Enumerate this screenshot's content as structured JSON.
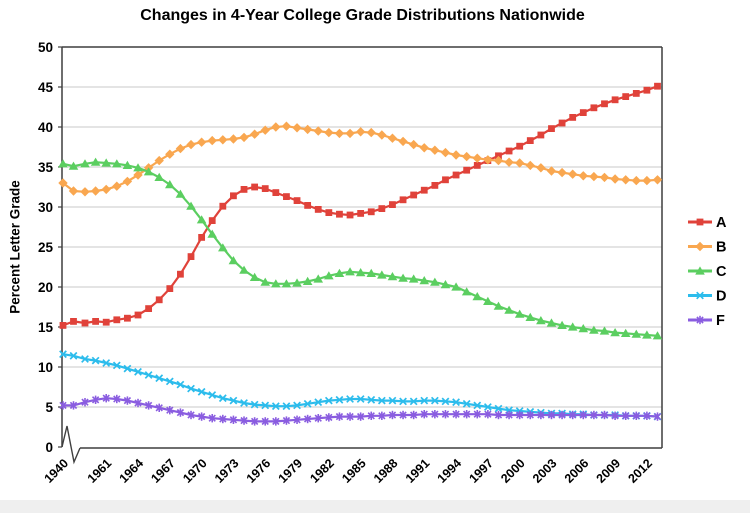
{
  "chart_data": {
    "type": "line",
    "title": "Changes in 4-Year College Grade Distributions Nationwide",
    "ylabel": "Percent Letter Grade",
    "xlabel": "",
    "ylim": [
      0,
      50
    ],
    "yticks": [
      0,
      5,
      10,
      15,
      20,
      25,
      30,
      35,
      40,
      45,
      50
    ],
    "xtick_labels": [
      "1940",
      "1961",
      "1964",
      "1967",
      "1970",
      "1973",
      "1976",
      "1979",
      "1982",
      "1985",
      "1988",
      "1991",
      "1994",
      "1997",
      "2000",
      "2003",
      "2006",
      "2009",
      "2012"
    ],
    "axis_break": "between 1940 and 1961 on x-axis",
    "grid": "horizontal",
    "legend_position": "right",
    "years": [
      1940,
      1950,
      1959,
      1960,
      1961,
      1962,
      1963,
      1964,
      1965,
      1966,
      1967,
      1968,
      1969,
      1970,
      1971,
      1972,
      1973,
      1974,
      1975,
      1976,
      1977,
      1978,
      1979,
      1980,
      1981,
      1982,
      1983,
      1984,
      1985,
      1986,
      1987,
      1988,
      1989,
      1990,
      1991,
      1992,
      1993,
      1994,
      1995,
      1996,
      1997,
      1998,
      1999,
      2000,
      2001,
      2002,
      2003,
      2004,
      2005,
      2006,
      2007,
      2008,
      2009,
      2010,
      2011,
      2012,
      2013
    ],
    "series": [
      {
        "name": "A",
        "color": "#e0423a",
        "marker": "square",
        "values": [
          15.2,
          15.7,
          15.5,
          15.7,
          15.6,
          15.9,
          16.1,
          16.5,
          17.3,
          18.4,
          19.8,
          21.6,
          23.8,
          26.2,
          28.3,
          30.1,
          31.4,
          32.2,
          32.5,
          32.3,
          31.8,
          31.3,
          30.8,
          30.2,
          29.7,
          29.3,
          29.1,
          29.0,
          29.2,
          29.4,
          29.8,
          30.3,
          30.9,
          31.5,
          32.1,
          32.7,
          33.4,
          34.0,
          34.6,
          35.2,
          35.8,
          36.4,
          37.0,
          37.6,
          38.3,
          39.0,
          39.8,
          40.5,
          41.2,
          41.8,
          42.4,
          42.9,
          43.4,
          43.8,
          44.2,
          44.6,
          45.1
        ]
      },
      {
        "name": "B",
        "color": "#f9a750",
        "marker": "diamond",
        "values": [
          33.0,
          32.0,
          31.9,
          32.0,
          32.2,
          32.6,
          33.2,
          34.0,
          34.9,
          35.8,
          36.6,
          37.3,
          37.8,
          38.1,
          38.3,
          38.4,
          38.5,
          38.7,
          39.1,
          39.6,
          40.0,
          40.1,
          39.9,
          39.7,
          39.5,
          39.3,
          39.2,
          39.2,
          39.4,
          39.3,
          39.0,
          38.6,
          38.2,
          37.8,
          37.4,
          37.1,
          36.8,
          36.5,
          36.3,
          36.1,
          35.9,
          35.8,
          35.6,
          35.5,
          35.2,
          34.9,
          34.5,
          34.3,
          34.1,
          33.9,
          33.8,
          33.7,
          33.5,
          33.4,
          33.3,
          33.3,
          33.4
        ]
      },
      {
        "name": "C",
        "color": "#5bce60",
        "marker": "triangle",
        "values": [
          35.4,
          35.1,
          35.4,
          35.6,
          35.5,
          35.4,
          35.2,
          34.9,
          34.4,
          33.7,
          32.8,
          31.6,
          30.1,
          28.4,
          26.6,
          24.9,
          23.3,
          22.1,
          21.2,
          20.6,
          20.4,
          20.4,
          20.5,
          20.7,
          21.0,
          21.4,
          21.7,
          21.9,
          21.8,
          21.7,
          21.5,
          21.3,
          21.1,
          21.0,
          20.8,
          20.6,
          20.3,
          20.0,
          19.4,
          18.8,
          18.2,
          17.6,
          17.1,
          16.6,
          16.2,
          15.8,
          15.5,
          15.2,
          15.0,
          14.8,
          14.6,
          14.5,
          14.3,
          14.2,
          14.1,
          14.0,
          13.9
        ]
      },
      {
        "name": "D",
        "color": "#2cbcec",
        "marker": "x",
        "values": [
          11.6,
          11.4,
          11.0,
          10.8,
          10.5,
          10.2,
          9.8,
          9.4,
          9.0,
          8.6,
          8.2,
          7.8,
          7.3,
          6.9,
          6.5,
          6.1,
          5.8,
          5.5,
          5.3,
          5.2,
          5.1,
          5.1,
          5.2,
          5.4,
          5.6,
          5.8,
          5.9,
          6.0,
          6.0,
          5.9,
          5.8,
          5.8,
          5.7,
          5.7,
          5.8,
          5.8,
          5.7,
          5.6,
          5.4,
          5.2,
          5.0,
          4.8,
          4.6,
          4.5,
          4.4,
          4.3,
          4.2,
          4.2,
          4.1,
          4.1,
          4.0,
          4.0,
          4.0,
          3.9,
          3.9,
          3.9,
          3.8
        ]
      },
      {
        "name": "F",
        "color": "#8a5de0",
        "marker": "asterisk",
        "values": [
          5.2,
          5.2,
          5.6,
          5.9,
          6.1,
          6.0,
          5.8,
          5.5,
          5.2,
          4.9,
          4.6,
          4.3,
          4.0,
          3.8,
          3.6,
          3.5,
          3.4,
          3.3,
          3.2,
          3.2,
          3.2,
          3.3,
          3.4,
          3.5,
          3.6,
          3.7,
          3.8,
          3.8,
          3.8,
          3.9,
          3.9,
          4.0,
          4.0,
          4.0,
          4.1,
          4.1,
          4.1,
          4.1,
          4.1,
          4.1,
          4.1,
          4.0,
          4.0,
          4.0,
          4.0,
          4.0,
          4.0,
          4.0,
          4.0,
          4.0,
          4.0,
          4.0,
          3.9,
          3.9,
          3.9,
          3.9,
          3.8
        ]
      }
    ],
    "colors": {
      "grid": "#c8c8c8",
      "axis": "#3f3f3f",
      "text": "#000000"
    }
  }
}
